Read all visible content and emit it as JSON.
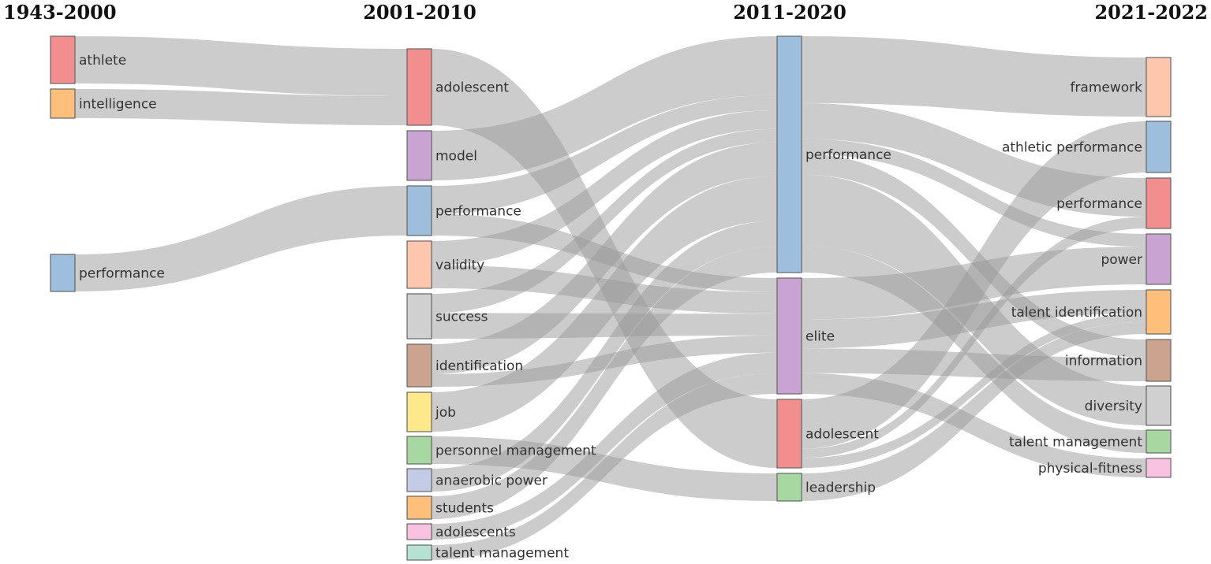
{
  "palette": {
    "red": "#f28e8e",
    "orange": "#fdbf7a",
    "blue": "#9dbfdd",
    "purple": "#c9a3d1",
    "peach": "#fdc6ad",
    "grey": "#d0d0d0",
    "brown": "#cca38e",
    "yellow": "#fde98c",
    "green": "#a8d8a1",
    "lavender": "#c3cbe6",
    "pink": "#f8c2e0",
    "mint": "#b6e2d4",
    "link": "#9a9a9a"
  },
  "columns": [
    {
      "title": "1943-2000"
    },
    {
      "title": "2001-2010"
    },
    {
      "title": "2011-2020"
    },
    {
      "title": "2021-2022"
    }
  ],
  "nodes": [
    {
      "id": "c0_athlete",
      "col": 0,
      "label": "athlete",
      "color": "red"
    },
    {
      "id": "c0_intelligence",
      "col": 0,
      "label": "intelligence",
      "color": "orange"
    },
    {
      "id": "c0_performance",
      "col": 0,
      "label": "performance",
      "color": "blue"
    },
    {
      "id": "c1_adolescent",
      "col": 1,
      "label": "adolescent",
      "color": "red"
    },
    {
      "id": "c1_model",
      "col": 1,
      "label": "model",
      "color": "purple"
    },
    {
      "id": "c1_performance",
      "col": 1,
      "label": "performance",
      "color": "blue"
    },
    {
      "id": "c1_validity",
      "col": 1,
      "label": "validity",
      "color": "peach"
    },
    {
      "id": "c1_success",
      "col": 1,
      "label": "success",
      "color": "grey"
    },
    {
      "id": "c1_identification",
      "col": 1,
      "label": "identification",
      "color": "brown"
    },
    {
      "id": "c1_job",
      "col": 1,
      "label": "job",
      "color": "yellow"
    },
    {
      "id": "c1_personnel",
      "col": 1,
      "label": "personnel management",
      "color": "green"
    },
    {
      "id": "c1_anaerobic",
      "col": 1,
      "label": "anaerobic power",
      "color": "lavender"
    },
    {
      "id": "c1_students",
      "col": 1,
      "label": "students",
      "color": "orange"
    },
    {
      "id": "c1_adolescents",
      "col": 1,
      "label": "adolescents",
      "color": "pink"
    },
    {
      "id": "c1_talentmgmt",
      "col": 1,
      "label": "talent management",
      "color": "mint"
    },
    {
      "id": "c2_performance",
      "col": 2,
      "label": "performance",
      "color": "blue"
    },
    {
      "id": "c2_elite",
      "col": 2,
      "label": "elite",
      "color": "purple"
    },
    {
      "id": "c2_adolescent",
      "col": 2,
      "label": "adolescent",
      "color": "red"
    },
    {
      "id": "c2_leadership",
      "col": 2,
      "label": "leadership",
      "color": "green"
    },
    {
      "id": "c3_framework",
      "col": 3,
      "label": "framework",
      "color": "peach"
    },
    {
      "id": "c3_athletic",
      "col": 3,
      "label": "athletic performance",
      "color": "blue"
    },
    {
      "id": "c3_performance",
      "col": 3,
      "label": "performance",
      "color": "red"
    },
    {
      "id": "c3_power",
      "col": 3,
      "label": "power",
      "color": "purple"
    },
    {
      "id": "c3_talentid",
      "col": 3,
      "label": "talent identification",
      "color": "orange"
    },
    {
      "id": "c3_information",
      "col": 3,
      "label": "information",
      "color": "brown"
    },
    {
      "id": "c3_diversity",
      "col": 3,
      "label": "diversity",
      "color": "grey"
    },
    {
      "id": "c3_talentmgmt",
      "col": 3,
      "label": "talent management",
      "color": "green"
    },
    {
      "id": "c3_physical",
      "col": 3,
      "label": "physical-fitness",
      "color": "pink"
    }
  ],
  "links": [
    {
      "source": "c0_athlete",
      "target": "c1_adolescent",
      "value": 60
    },
    {
      "source": "c0_intelligence",
      "target": "c1_adolescent",
      "value": 37
    },
    {
      "source": "c0_performance",
      "target": "c1_performance",
      "value": 47
    },
    {
      "source": "c1_adolescent",
      "target": "c2_adolescent",
      "value": 20
    },
    {
      "source": "c1_model",
      "target": "c2_performance",
      "value": 66
    },
    {
      "source": "c1_performance",
      "target": "c2_performance",
      "value": 17
    },
    {
      "source": "c1_performance",
      "target": "c2_elite",
      "value": 13
    },
    {
      "source": "c1_validity",
      "target": "c2_performance",
      "value": 21
    },
    {
      "source": "c1_validity",
      "target": "c2_elite",
      "value": 20
    },
    {
      "source": "c1_success",
      "target": "c2_performance",
      "value": 15
    },
    {
      "source": "c1_success",
      "target": "c2_elite",
      "value": 20
    },
    {
      "source": "c1_identification",
      "target": "c2_performance",
      "value": 38
    },
    {
      "source": "c1_identification",
      "target": "c2_elite",
      "value": 16
    },
    {
      "source": "c1_job",
      "target": "c2_performance",
      "value": 50
    },
    {
      "source": "c1_personnel",
      "target": "c2_leadership",
      "value": 35
    },
    {
      "source": "c1_anaerobic",
      "target": "c2_performance",
      "value": 29
    },
    {
      "source": "c1_students",
      "target": "c2_performance",
      "value": 29
    },
    {
      "source": "c1_adolescents",
      "target": "c2_elite",
      "value": 19
    },
    {
      "source": "c1_talentmgmt",
      "target": "c2_elite",
      "value": 19
    },
    {
      "source": "c2_performance",
      "target": "c3_framework",
      "value": 75
    },
    {
      "source": "c2_performance",
      "target": "c3_performance",
      "value": 40
    },
    {
      "source": "c2_performance",
      "target": "c3_power",
      "value": 17
    },
    {
      "source": "c2_performance",
      "target": "c3_information",
      "value": 23
    },
    {
      "source": "c2_performance",
      "target": "c3_diversity",
      "value": 80
    },
    {
      "source": "c2_performance",
      "target": "c3_talentmgmt",
      "value": 30
    },
    {
      "source": "c2_elite",
      "target": "c3_power",
      "value": 50
    },
    {
      "source": "c2_elite",
      "target": "c3_talentid",
      "value": 35
    },
    {
      "source": "c2_elite",
      "target": "c3_information",
      "value": 30
    },
    {
      "source": "c2_elite",
      "target": "c3_physical",
      "value": 25
    },
    {
      "source": "c2_adolescent",
      "target": "c3_athletic",
      "value": 65
    },
    {
      "source": "c2_adolescent",
      "target": "c3_performance",
      "value": 12
    },
    {
      "source": "c2_adolescent",
      "target": "c3_talentid",
      "value": 13
    },
    {
      "source": "c2_leadership",
      "target": "c3_talentid",
      "value": 18
    }
  ]
}
